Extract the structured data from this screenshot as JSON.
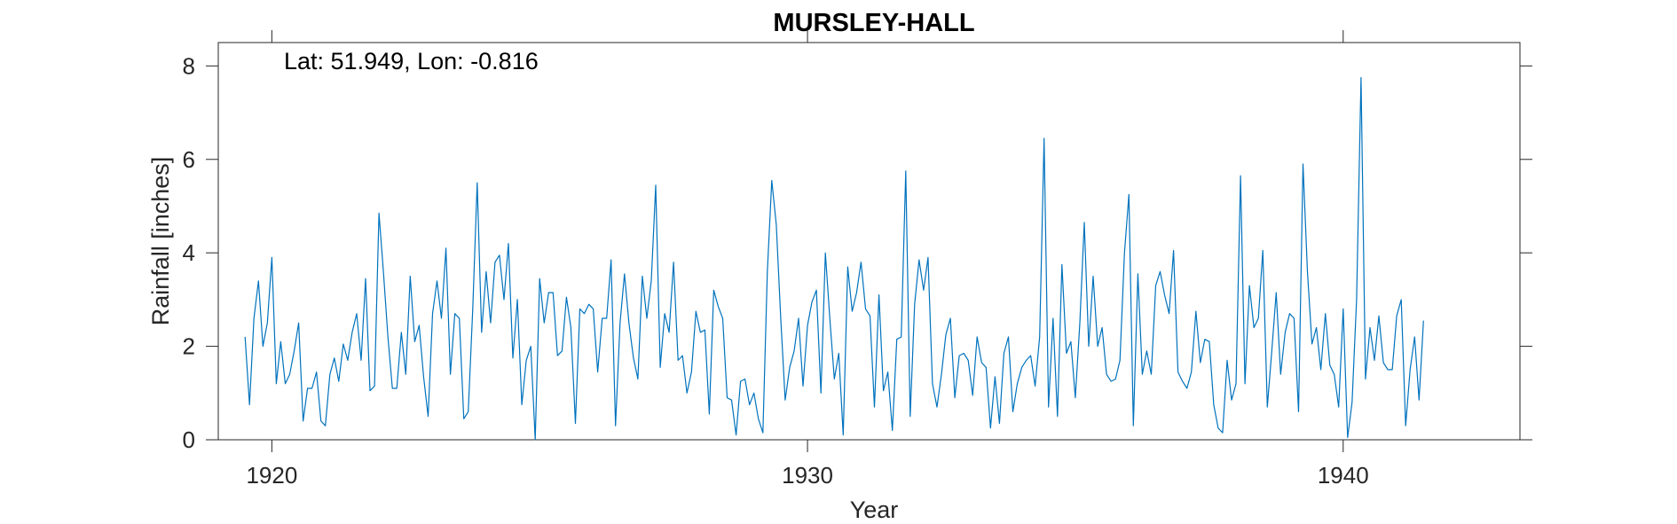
{
  "chart_data": {
    "type": "line",
    "title": "MURSLEY-HALL",
    "xlabel": "Year",
    "ylabel": "Rainfall [inches]",
    "annotation": "Lat: 51.949, Lon: -0.816",
    "xlim": [
      1919,
      1943.3
    ],
    "ylim": [
      0,
      8.5
    ],
    "xticks": [
      1920,
      1930,
      1940
    ],
    "yticks": [
      0,
      2,
      4,
      6,
      8
    ],
    "grid": false,
    "line_color": "#0072BD",
    "series": [
      {
        "x_start": 1919.5,
        "x_step": 0.0833333,
        "values": [
          2.2,
          0.75,
          2.6,
          3.4,
          2.0,
          2.5,
          3.9,
          1.2,
          2.1,
          1.2,
          1.4,
          1.9,
          2.5,
          0.4,
          1.1,
          1.1,
          1.45,
          0.4,
          0.3,
          1.4,
          1.75,
          1.25,
          2.05,
          1.7,
          2.3,
          2.7,
          1.7,
          3.45,
          1.05,
          1.15,
          4.85,
          3.6,
          2.2,
          1.1,
          1.1,
          2.3,
          1.4,
          3.5,
          2.1,
          2.45,
          1.35,
          0.5,
          2.7,
          3.4,
          2.6,
          4.1,
          1.4,
          2.7,
          2.6,
          0.45,
          0.6,
          2.8,
          5.5,
          2.3,
          3.6,
          2.5,
          3.8,
          3.95,
          3.0,
          4.2,
          1.75,
          3.0,
          0.75,
          1.7,
          2.0,
          0.0,
          3.45,
          2.5,
          3.15,
          3.15,
          1.8,
          1.9,
          3.05,
          2.4,
          0.35,
          2.8,
          2.7,
          2.9,
          2.8,
          1.45,
          2.6,
          2.6,
          3.85,
          0.3,
          2.5,
          3.55,
          2.5,
          1.75,
          1.3,
          3.5,
          2.6,
          3.4,
          5.45,
          1.55,
          2.7,
          2.3,
          3.8,
          1.7,
          1.8,
          1.0,
          1.45,
          2.75,
          2.3,
          2.35,
          0.55,
          3.2,
          2.85,
          2.6,
          0.9,
          0.85,
          0.1,
          1.25,
          1.3,
          0.75,
          1.0,
          0.45,
          0.15,
          3.6,
          5.55,
          4.6,
          2.6,
          0.85,
          1.55,
          1.9,
          2.6,
          1.15,
          2.45,
          2.95,
          3.2,
          1.0,
          4.0,
          2.6,
          1.3,
          1.85,
          0.1,
          3.7,
          2.75,
          3.15,
          3.8,
          2.8,
          2.65,
          0.7,
          3.1,
          1.05,
          1.45,
          0.2,
          2.15,
          2.2,
          5.75,
          0.5,
          2.9,
          3.85,
          3.2,
          3.9,
          1.2,
          0.7,
          1.4,
          2.25,
          2.6,
          0.9,
          1.8,
          1.85,
          1.7,
          0.95,
          2.2,
          1.65,
          1.55,
          0.25,
          1.35,
          0.35,
          1.85,
          2.2,
          0.6,
          1.2,
          1.55,
          1.7,
          1.8,
          1.15,
          2.2,
          6.45,
          0.7,
          2.6,
          0.5,
          3.75,
          1.85,
          2.1,
          0.9,
          2.5,
          4.65,
          2.0,
          3.5,
          2.0,
          2.4,
          1.4,
          1.25,
          1.3,
          1.7,
          4.0,
          5.25,
          0.3,
          3.55,
          1.4,
          1.9,
          1.4,
          3.3,
          3.6,
          3.1,
          2.7,
          4.05,
          1.45,
          1.25,
          1.1,
          1.45,
          2.75,
          1.65,
          2.15,
          2.1,
          0.75,
          0.25,
          0.15,
          1.7,
          0.85,
          1.2,
          5.65,
          1.2,
          3.3,
          2.4,
          2.6,
          4.05,
          0.7,
          1.9,
          3.15,
          1.4,
          2.3,
          2.7,
          2.6,
          0.6,
          5.9,
          3.6,
          2.05,
          2.4,
          1.5,
          2.7,
          1.6,
          1.4,
          0.7,
          2.8,
          0.05,
          0.8,
          3.0,
          7.75,
          1.3,
          2.4,
          1.7,
          2.65,
          1.65,
          1.5,
          1.5,
          2.65,
          3.0,
          0.3,
          1.5,
          2.2,
          0.85,
          2.55
        ]
      }
    ]
  }
}
